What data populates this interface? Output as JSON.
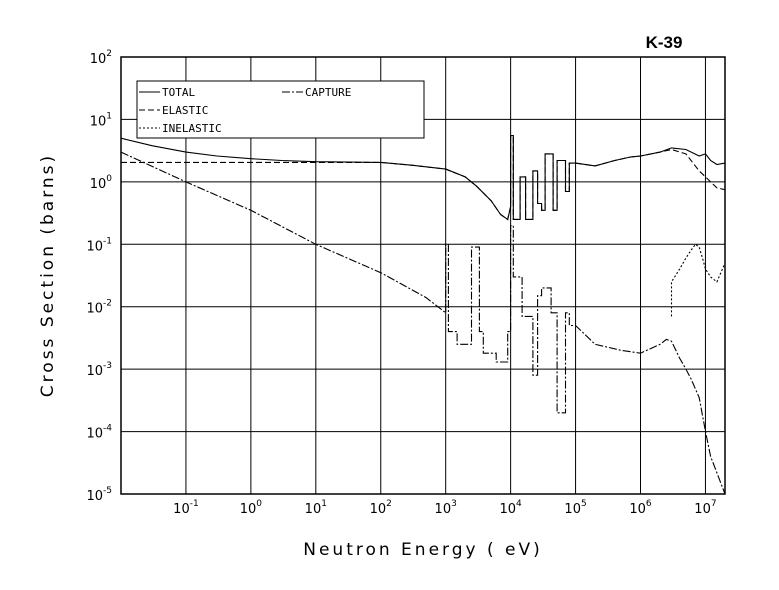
{
  "chart_data": {
    "type": "line",
    "title": "K-39",
    "xlabel": "Neutron Energy ( eV)",
    "ylabel": "Cross Section (barns)",
    "x_scale": "log",
    "y_scale": "log",
    "xlim": [
      0.01,
      20000000
    ],
    "ylim": [
      1e-05,
      100
    ],
    "grid": true,
    "legend_position": "top-left",
    "x_ticks": [
      {
        "value": 0.1,
        "base": "10",
        "exp": "-1"
      },
      {
        "value": 1,
        "base": "10",
        "exp": "0"
      },
      {
        "value": 10,
        "base": "10",
        "exp": "1"
      },
      {
        "value": 100,
        "base": "10",
        "exp": "2"
      },
      {
        "value": 1000,
        "base": "10",
        "exp": "3"
      },
      {
        "value": 10000,
        "base": "10",
        "exp": "4"
      },
      {
        "value": 100000,
        "base": "10",
        "exp": "5"
      },
      {
        "value": 1000000,
        "base": "10",
        "exp": "6"
      },
      {
        "value": 10000000,
        "base": "10",
        "exp": "7"
      }
    ],
    "y_ticks": [
      {
        "value": 100,
        "base": "10",
        "exp": "2"
      },
      {
        "value": 10,
        "base": "10",
        "exp": "1"
      },
      {
        "value": 1,
        "base": "10",
        "exp": "0"
      },
      {
        "value": 0.1,
        "base": "10",
        "exp": "-1"
      },
      {
        "value": 0.01,
        "base": "10",
        "exp": "-2"
      },
      {
        "value": 0.001,
        "base": "10",
        "exp": "-3"
      },
      {
        "value": 0.0001,
        "base": "10",
        "exp": "-4"
      },
      {
        "value": 1e-05,
        "base": "10",
        "exp": "-5"
      }
    ],
    "series": [
      {
        "name": "TOTAL",
        "dash": "",
        "x": [
          0.01,
          0.03,
          0.1,
          0.3,
          1,
          3,
          10,
          100,
          300,
          1000,
          2000,
          3000,
          5000,
          7000,
          9000,
          10000,
          10000,
          11000,
          11000,
          14000,
          14000,
          17000,
          17000,
          22000,
          22000,
          26000,
          26000,
          30000,
          30000,
          34000,
          34000,
          45000,
          45000,
          52000,
          52000,
          70000,
          70000,
          80000,
          80000,
          100000,
          200000,
          400000,
          700000,
          1000000,
          2000000,
          3000000,
          5000000,
          8000000,
          10000000,
          12000000,
          15000000,
          20000000
        ],
        "y": [
          5.0,
          3.8,
          3.0,
          2.6,
          2.35,
          2.2,
          2.1,
          2.05,
          1.85,
          1.6,
          1.2,
          0.85,
          0.5,
          0.3,
          0.25,
          0.4,
          5.5,
          5.5,
          0.25,
          0.25,
          1.2,
          1.2,
          0.25,
          0.25,
          1.5,
          1.5,
          0.45,
          0.45,
          0.35,
          0.35,
          2.8,
          2.8,
          0.35,
          0.35,
          2.2,
          2.2,
          0.7,
          0.7,
          2.0,
          2.0,
          1.8,
          2.2,
          2.5,
          2.6,
          3.0,
          3.5,
          3.3,
          2.6,
          2.8,
          2.2,
          1.9,
          2.0
        ]
      },
      {
        "name": "ELASTIC",
        "dash": "6,3",
        "x": [
          0.01,
          0.1,
          1,
          3,
          10,
          100,
          300,
          1000,
          2000,
          3000,
          5000,
          7000,
          9000,
          10000,
          10000,
          11000,
          11000,
          14000,
          14000,
          17000,
          17000,
          22000,
          22000,
          26000,
          26000,
          30000,
          30000,
          34000,
          34000,
          45000,
          45000,
          52000,
          52000,
          70000,
          70000,
          80000,
          80000,
          100000,
          200000,
          400000,
          700000,
          1000000,
          2000000,
          3000000,
          5000000,
          8000000,
          10000000,
          12000000,
          15000000,
          20000000
        ],
        "y": [
          2.05,
          2.05,
          2.05,
          2.05,
          2.05,
          2.05,
          1.85,
          1.6,
          1.2,
          0.85,
          0.5,
          0.3,
          0.25,
          0.4,
          5.5,
          5.5,
          0.25,
          0.25,
          1.2,
          1.2,
          0.25,
          0.25,
          1.5,
          1.5,
          0.45,
          0.45,
          0.35,
          0.35,
          2.8,
          2.8,
          0.35,
          0.35,
          2.2,
          2.2,
          0.7,
          0.7,
          2.0,
          2.0,
          1.8,
          2.2,
          2.5,
          2.6,
          3.0,
          3.3,
          2.8,
          1.5,
          1.2,
          1.0,
          0.8,
          0.75
        ]
      },
      {
        "name": "INELASTIC",
        "dash": "2,2",
        "x": [
          3000000,
          3000000,
          4000000,
          5000000,
          6000000,
          7000000,
          8000000,
          9000000,
          10000000,
          12000000,
          15000000,
          20000000
        ],
        "y": [
          0.007,
          0.025,
          0.04,
          0.06,
          0.08,
          0.1,
          0.09,
          0.06,
          0.04,
          0.03,
          0.025,
          0.05
        ]
      },
      {
        "name": "CAPTURE",
        "dash": "8,2,2,2",
        "x": [
          0.01,
          0.1,
          1,
          10,
          100,
          500,
          1000,
          1000,
          1100,
          1100,
          1500,
          1500,
          2500,
          2500,
          3300,
          3300,
          3800,
          3800,
          6000,
          6000,
          9000,
          9000,
          10000,
          10000,
          11000,
          11000,
          15000,
          15000,
          22000,
          22000,
          26000,
          26000,
          30000,
          30000,
          42000,
          42000,
          52000,
          52000,
          70000,
          70000,
          80000,
          80000,
          100000,
          200000,
          500000,
          1000000,
          2000000,
          2500000,
          3000000,
          4000000,
          5000000,
          6000000,
          8000000,
          10000000,
          12000000,
          20000000
        ],
        "y": [
          3.0,
          1.0,
          0.35,
          0.1,
          0.035,
          0.014,
          0.008,
          0.1,
          0.1,
          0.004,
          0.004,
          0.0025,
          0.0025,
          0.09,
          0.09,
          0.004,
          0.004,
          0.0018,
          0.0018,
          0.0013,
          0.0013,
          0.004,
          0.004,
          0.2,
          0.2,
          0.03,
          0.03,
          0.007,
          0.007,
          0.0008,
          0.0008,
          0.015,
          0.015,
          0.02,
          0.02,
          0.008,
          0.008,
          0.0002,
          0.0002,
          0.008,
          0.008,
          0.005,
          0.005,
          0.0025,
          0.002,
          0.0018,
          0.0025,
          0.003,
          0.0028,
          0.0015,
          0.001,
          0.0007,
          0.00035,
          0.0001,
          4e-05,
          1e-05
        ]
      }
    ]
  }
}
